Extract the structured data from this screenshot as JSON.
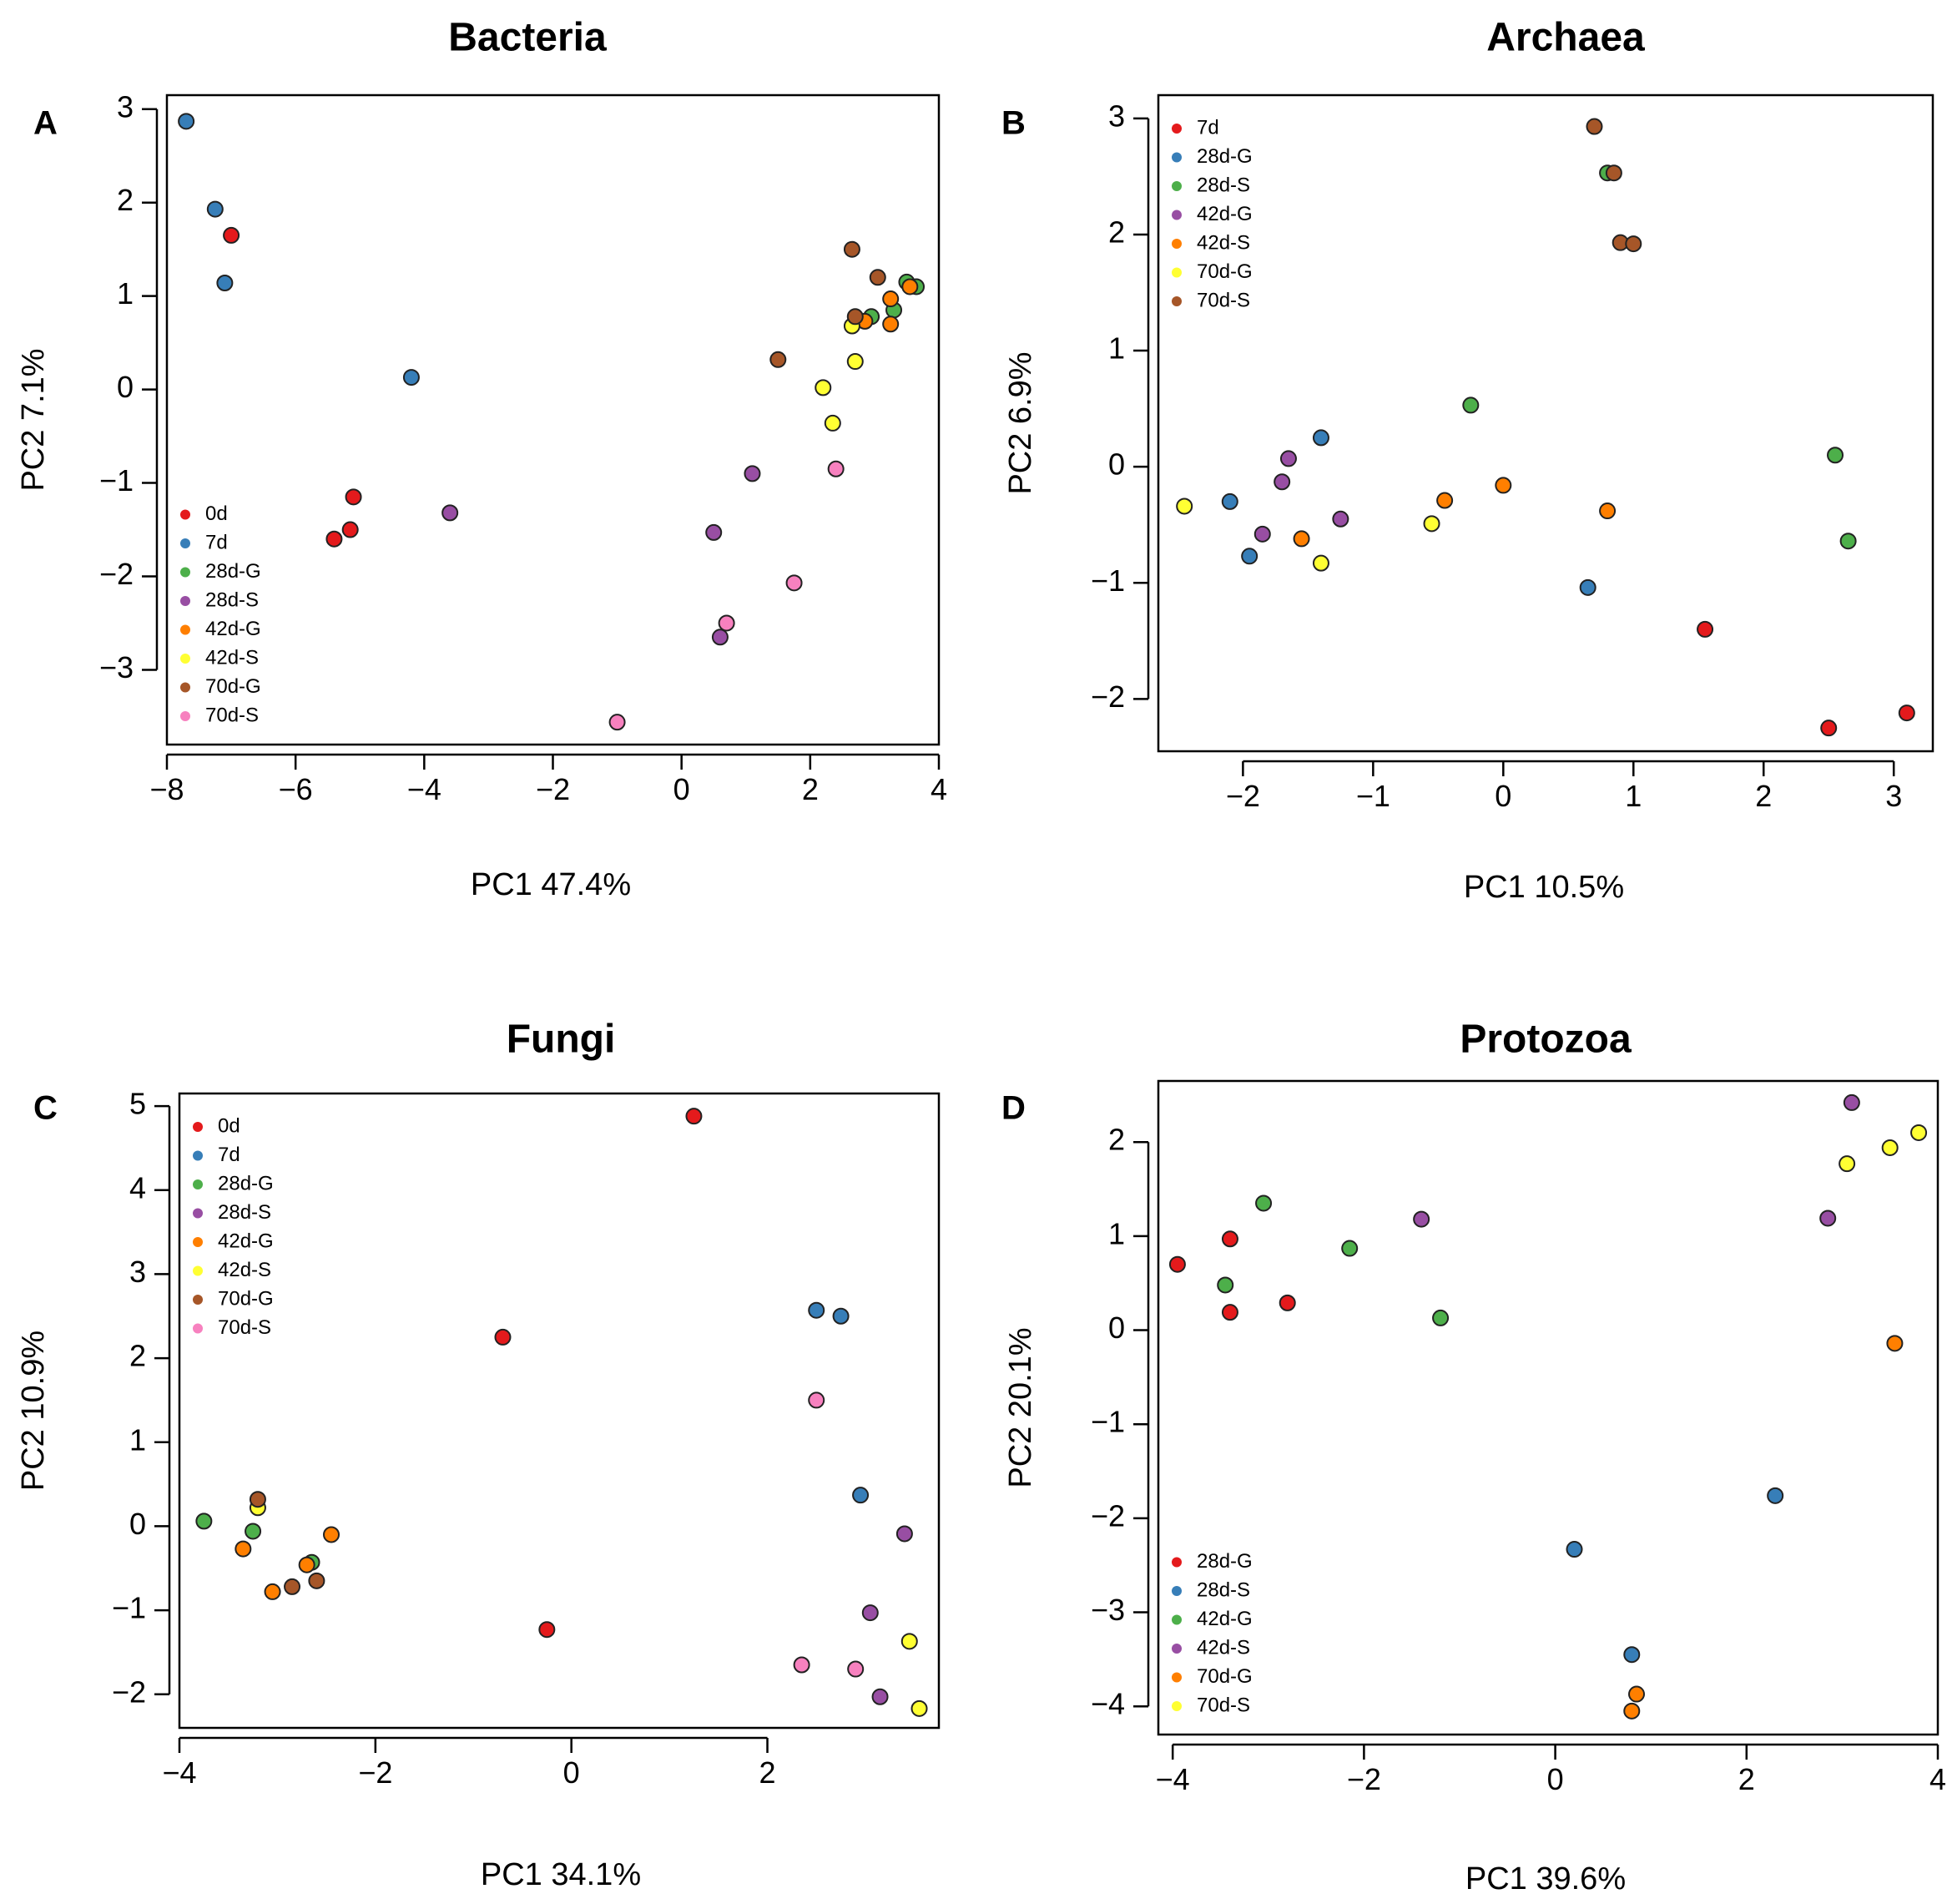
{
  "chart_data": [
    {
      "type": "scatter",
      "panel_label": "A",
      "title": "Bacteria",
      "xlabel": "PC1  47.4%",
      "ylabel": "PC2  7.1%",
      "xlim": [
        -8.0,
        4.0
      ],
      "ylim": [
        -3.8,
        3.15
      ],
      "xticks": [
        -8,
        -6,
        -4,
        -2,
        0,
        2,
        4
      ],
      "yticks": [
        -3,
        -2,
        -1,
        0,
        1,
        2,
        3
      ],
      "legend_position": "bottom-left",
      "series": [
        {
          "name": "0d",
          "color": "#e41a1c",
          "points": [
            [
              -7.0,
              1.65
            ],
            [
              -5.4,
              -1.6
            ],
            [
              -5.15,
              -1.5
            ],
            [
              -5.1,
              -1.15
            ]
          ]
        },
        {
          "name": "7d",
          "color": "#377eb8",
          "points": [
            [
              -7.7,
              2.87
            ],
            [
              -7.25,
              1.93
            ],
            [
              -7.1,
              1.14
            ],
            [
              -4.2,
              0.13
            ]
          ]
        },
        {
          "name": "28d-G",
          "color": "#4daf4a",
          "points": [
            [
              2.95,
              0.78
            ],
            [
              3.3,
              0.85
            ],
            [
              3.5,
              1.15
            ],
            [
              3.65,
              1.1
            ]
          ]
        },
        {
          "name": "28d-S",
          "color": "#984ea3",
          "points": [
            [
              -3.6,
              -1.32
            ],
            [
              1.1,
              -0.9
            ],
            [
              0.5,
              -1.53
            ],
            [
              0.6,
              -2.65
            ]
          ]
        },
        {
          "name": "42d-G",
          "color": "#ff7f00",
          "points": [
            [
              2.85,
              0.73
            ],
            [
              3.25,
              0.97
            ],
            [
              3.25,
              0.7
            ],
            [
              3.55,
              1.1
            ]
          ]
        },
        {
          "name": "42d-S",
          "color": "#ffff33",
          "points": [
            [
              2.2,
              0.02
            ],
            [
              2.35,
              -0.36
            ],
            [
              2.7,
              0.3
            ],
            [
              2.65,
              0.68
            ]
          ]
        },
        {
          "name": "70d-G",
          "color": "#a65628",
          "points": [
            [
              1.5,
              0.32
            ],
            [
              2.65,
              1.5
            ],
            [
              3.05,
              1.2
            ],
            [
              2.7,
              0.78
            ]
          ]
        },
        {
          "name": "70d-S",
          "color": "#f781bf",
          "points": [
            [
              2.4,
              -0.85
            ],
            [
              1.75,
              -2.07
            ],
            [
              0.7,
              -2.5
            ],
            [
              -1.0,
              -3.56
            ]
          ]
        }
      ]
    },
    {
      "type": "scatter",
      "panel_label": "B",
      "title": "Archaea",
      "xlabel": "PC1  10.5%",
      "ylabel": "PC2  6.9%",
      "xlim": [
        -2.65,
        3.3
      ],
      "ylim": [
        -2.45,
        3.2
      ],
      "xticks": [
        -2,
        -1,
        0,
        1,
        2,
        3
      ],
      "yticks": [
        -2,
        -1,
        0,
        1,
        2,
        3
      ],
      "legend_position": "top-left",
      "series": [
        {
          "name": "7d",
          "color": "#e41a1c",
          "points": [
            [
              1.55,
              -1.4
            ],
            [
              2.5,
              -2.25
            ],
            [
              3.1,
              -2.12
            ]
          ]
        },
        {
          "name": "28d-G",
          "color": "#377eb8",
          "points": [
            [
              -1.4,
              0.25
            ],
            [
              -2.1,
              -0.3
            ],
            [
              -1.95,
              -0.77
            ],
            [
              0.65,
              -1.04
            ]
          ]
        },
        {
          "name": "28d-S",
          "color": "#4daf4a",
          "points": [
            [
              -0.25,
              0.53
            ],
            [
              0.8,
              2.53
            ],
            [
              2.55,
              0.1
            ],
            [
              2.65,
              -0.64
            ]
          ]
        },
        {
          "name": "42d-G",
          "color": "#984ea3",
          "points": [
            [
              -1.65,
              0.07
            ],
            [
              -1.7,
              -0.13
            ],
            [
              -1.85,
              -0.58
            ],
            [
              -1.25,
              -0.45
            ]
          ]
        },
        {
          "name": "42d-S",
          "color": "#ff7f00",
          "points": [
            [
              -1.55,
              -0.62
            ],
            [
              -0.45,
              -0.29
            ],
            [
              0.0,
              -0.16
            ],
            [
              0.8,
              -0.38
            ]
          ]
        },
        {
          "name": "70d-G",
          "color": "#ffff33",
          "points": [
            [
              -2.45,
              -0.34
            ],
            [
              -1.4,
              -0.83
            ],
            [
              -0.55,
              -0.49
            ]
          ]
        },
        {
          "name": "70d-S",
          "color": "#a65628",
          "points": [
            [
              0.7,
              2.93
            ],
            [
              0.85,
              2.53
            ],
            [
              0.9,
              1.93
            ],
            [
              1.0,
              1.92
            ]
          ]
        }
      ]
    },
    {
      "type": "scatter",
      "panel_label": "C",
      "title": "Fungi",
      "xlabel": "PC1  34.1%",
      "ylabel": "PC2  10.9%",
      "xlim": [
        -4.0,
        3.75
      ],
      "ylim": [
        -2.4,
        5.15
      ],
      "xticks": [
        -4,
        -2,
        0,
        2
      ],
      "yticks": [
        -2,
        -1,
        0,
        1,
        2,
        3,
        4,
        5
      ],
      "legend_position": "top-left",
      "series": [
        {
          "name": "0d",
          "color": "#e41a1c",
          "points": [
            [
              1.25,
              4.88
            ],
            [
              -0.7,
              2.25
            ],
            [
              -0.25,
              -1.23
            ]
          ]
        },
        {
          "name": "7d",
          "color": "#377eb8",
          "points": [
            [
              2.5,
              2.57
            ],
            [
              2.75,
              2.5
            ],
            [
              2.95,
              0.37
            ]
          ]
        },
        {
          "name": "28d-G",
          "color": "#4daf4a",
          "points": [
            [
              -3.75,
              0.06
            ],
            [
              -3.25,
              -0.06
            ],
            [
              -2.65,
              -0.43
            ]
          ]
        },
        {
          "name": "28d-S",
          "color": "#984ea3",
          "points": [
            [
              3.4,
              -0.09
            ],
            [
              3.05,
              -1.03
            ],
            [
              3.15,
              -2.03
            ]
          ]
        },
        {
          "name": "42d-G",
          "color": "#ff7f00",
          "points": [
            [
              -3.35,
              -0.27
            ],
            [
              -3.05,
              -0.78
            ],
            [
              -2.45,
              -0.1
            ],
            [
              -2.7,
              -0.46
            ]
          ]
        },
        {
          "name": "42d-S",
          "color": "#ffff33",
          "points": [
            [
              -3.2,
              0.22
            ],
            [
              3.45,
              -1.37
            ],
            [
              3.55,
              -2.17
            ]
          ]
        },
        {
          "name": "70d-G",
          "color": "#a65628",
          "points": [
            [
              -3.2,
              0.32
            ],
            [
              -2.85,
              -0.72
            ],
            [
              -2.6,
              -0.65
            ]
          ]
        },
        {
          "name": "70d-S",
          "color": "#f781bf",
          "points": [
            [
              2.5,
              1.5
            ],
            [
              2.35,
              -1.65
            ],
            [
              2.9,
              -1.7
            ]
          ]
        }
      ]
    },
    {
      "type": "scatter",
      "panel_label": "D",
      "title": "Protozoa",
      "xlabel": "PC1  39.6%",
      "ylabel": "PC2  20.1%",
      "xlim": [
        -4.15,
        4.0
      ],
      "ylim": [
        -4.3,
        2.65
      ],
      "xticks": [
        -4,
        -2,
        0,
        2,
        4
      ],
      "yticks": [
        -4,
        -3,
        -2,
        -1,
        0,
        1,
        2
      ],
      "legend_position": "bottom-left",
      "series": [
        {
          "name": "28d-G",
          "color": "#e41a1c",
          "points": [
            [
              -3.95,
              0.7
            ],
            [
              -3.4,
              0.97
            ],
            [
              -3.4,
              0.19
            ],
            [
              -2.8,
              0.29
            ]
          ]
        },
        {
          "name": "28d-S",
          "color": "#377eb8",
          "points": [
            [
              0.2,
              -2.33
            ],
            [
              2.3,
              -1.76
            ],
            [
              0.8,
              -3.45
            ]
          ]
        },
        {
          "name": "42d-G",
          "color": "#4daf4a",
          "points": [
            [
              -3.05,
              1.35
            ],
            [
              -3.45,
              0.48
            ],
            [
              -2.15,
              0.87
            ],
            [
              -1.2,
              0.13
            ]
          ]
        },
        {
          "name": "42d-S",
          "color": "#984ea3",
          "points": [
            [
              -1.4,
              1.18
            ],
            [
              3.1,
              2.42
            ],
            [
              2.85,
              1.19
            ]
          ]
        },
        {
          "name": "70d-G",
          "color": "#ff7f00",
          "points": [
            [
              3.55,
              -0.14
            ],
            [
              0.85,
              -3.87
            ],
            [
              0.8,
              -4.05
            ]
          ]
        },
        {
          "name": "70d-S",
          "color": "#ffff33",
          "points": [
            [
              3.05,
              1.77
            ],
            [
              3.5,
              1.94
            ],
            [
              3.8,
              2.1
            ]
          ]
        }
      ]
    }
  ]
}
